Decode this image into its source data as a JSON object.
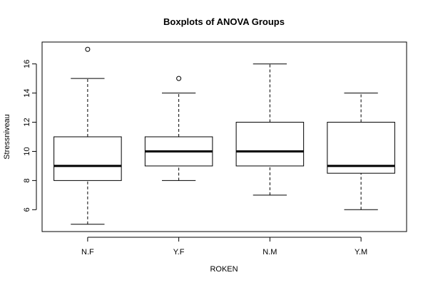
{
  "chart_data": {
    "type": "boxplot",
    "title": "Boxplots of ANOVA Groups",
    "xlabel": "ROKEN",
    "ylabel": "Stressniveau",
    "ylim": [
      4.5,
      17.5
    ],
    "yticks": [
      6,
      8,
      10,
      12,
      14,
      16
    ],
    "grid": false,
    "legend": "none",
    "colors": {
      "box_stroke": "#000000",
      "background": "#ffffff"
    },
    "categories": [
      "N.F",
      "Y.F",
      "N.M",
      "Y.M"
    ],
    "groups": [
      {
        "category": "N.F",
        "whisker_low": 5,
        "q1": 8,
        "median": 9,
        "q3": 11,
        "whisker_high": 15,
        "outliers": [
          17
        ]
      },
      {
        "category": "Y.F",
        "whisker_low": 8,
        "q1": 9,
        "median": 10,
        "q3": 11,
        "whisker_high": 14,
        "outliers": [
          15
        ]
      },
      {
        "category": "N.M",
        "whisker_low": 7,
        "q1": 9,
        "median": 10,
        "q3": 12,
        "whisker_high": 16,
        "outliers": []
      },
      {
        "category": "Y.M",
        "whisker_low": 6,
        "q1": 8.5,
        "median": 9,
        "q3": 12,
        "whisker_high": 14,
        "outliers": []
      }
    ]
  }
}
